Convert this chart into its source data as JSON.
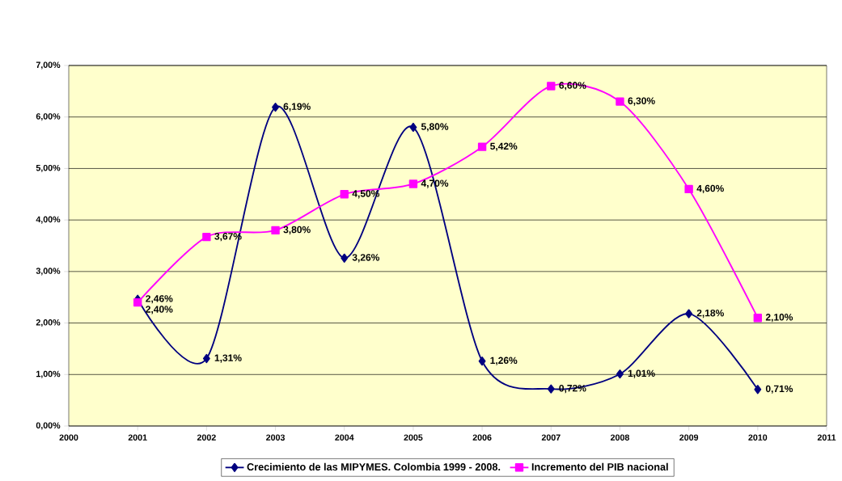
{
  "chart_data": {
    "type": "line",
    "x": [
      2001,
      2002,
      2003,
      2004,
      2005,
      2006,
      2007,
      2008,
      2009,
      2010
    ],
    "series": [
      {
        "name": "Crecimiento de las MIPYMES. Colombia 1999  - 2008.",
        "color": "#000080",
        "marker": "diamond",
        "values": [
          2.46,
          1.31,
          6.19,
          3.26,
          5.8,
          1.26,
          0.72,
          1.01,
          2.18,
          0.71
        ],
        "value_labels": [
          "2,46%",
          "1,31%",
          "6,19%",
          "3,26%",
          "5,80%",
          "1,26%",
          "0,72%",
          "1,01%",
          "2,18%",
          "0,71%"
        ]
      },
      {
        "name": "Incremento del PIB nacional",
        "color": "#ff00ff",
        "marker": "square",
        "values": [
          2.4,
          3.67,
          3.8,
          4.5,
          4.7,
          5.42,
          6.6,
          6.3,
          4.6,
          2.1
        ],
        "value_labels": [
          "2,40%",
          "3,67%",
          "3,80%",
          "4,50%",
          "4,70%",
          "5,42%",
          "6,60%",
          "6,30%",
          "4,60%",
          "2,10%"
        ]
      }
    ],
    "xlim": [
      2000,
      2011
    ],
    "xticks": [
      2000,
      2001,
      2002,
      2003,
      2004,
      2005,
      2006,
      2007,
      2008,
      2009,
      2010,
      2011
    ],
    "ylim": [
      0,
      7
    ],
    "yticks": [
      {
        "value": 0,
        "label": "0,00%"
      },
      {
        "value": 1,
        "label": "1,00%"
      },
      {
        "value": 2,
        "label": "2,00%"
      },
      {
        "value": 3,
        "label": "3,00%"
      },
      {
        "value": 4,
        "label": "4,00%"
      },
      {
        "value": 5,
        "label": "5,00%"
      },
      {
        "value": 6,
        "label": "6,00%"
      },
      {
        "value": 7,
        "label": "7,00%"
      }
    ],
    "grid": "y",
    "legend": "bottom"
  }
}
